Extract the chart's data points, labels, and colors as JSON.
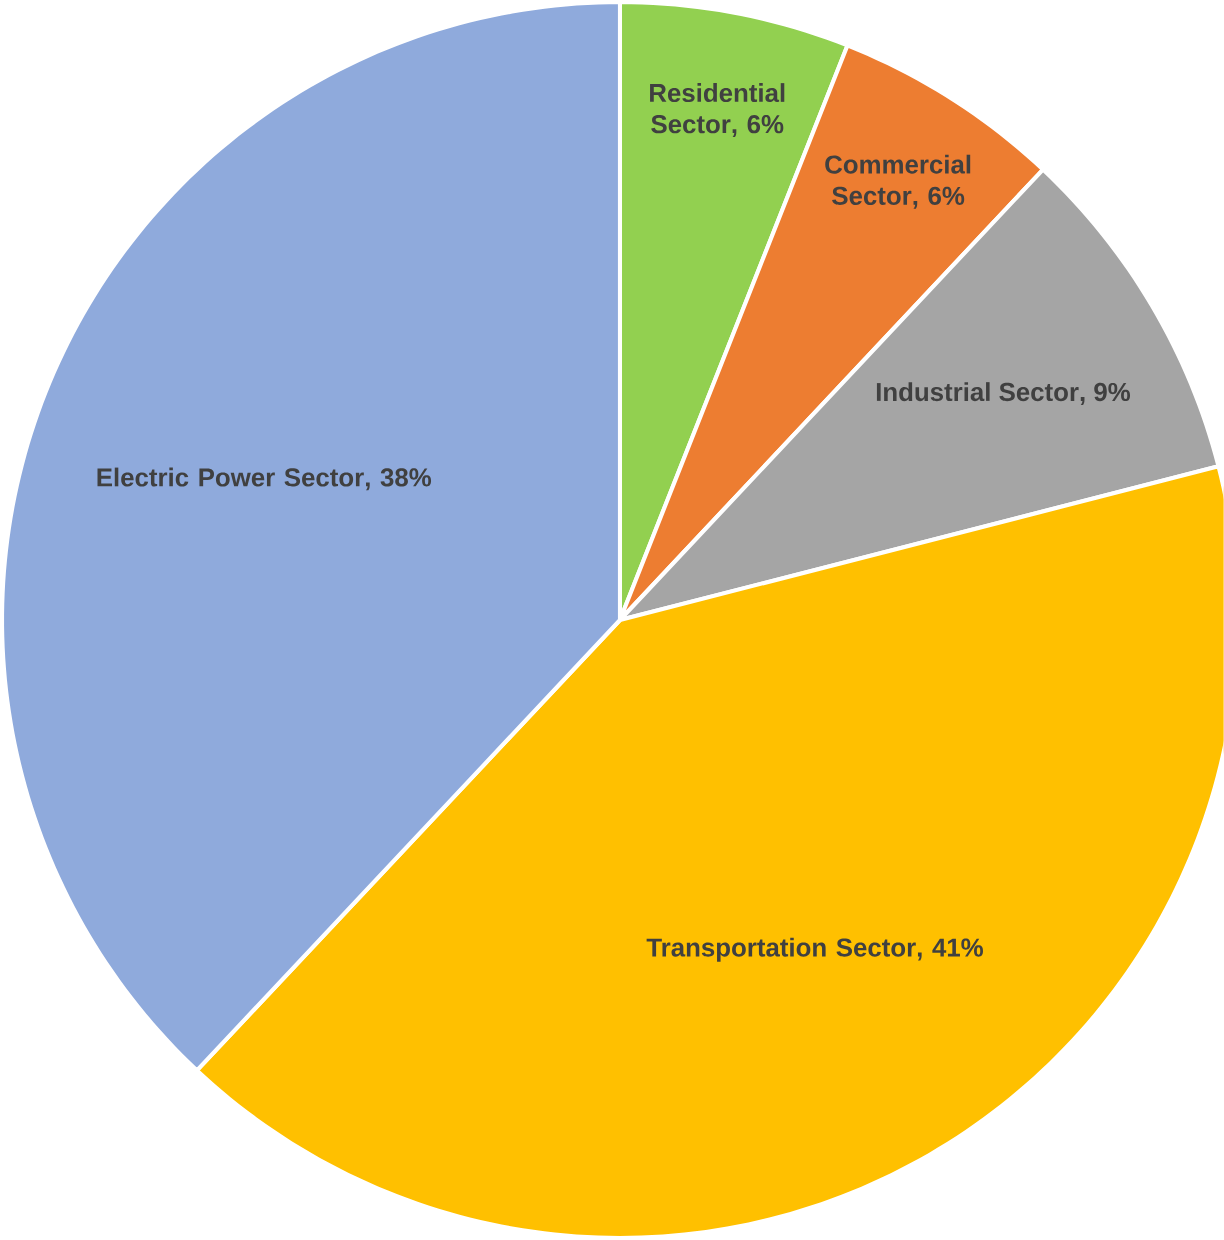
{
  "chart_data": {
    "type": "pie",
    "categories": [
      "Residential Sector",
      "Commercial Sector",
      "Industrial Sector",
      "Transportation Sector",
      "Electric Power Sector"
    ],
    "values": [
      6,
      6,
      9,
      41,
      38
    ],
    "value_labels": [
      ", 6%",
      ", 6%",
      ", 9%",
      ", 41%",
      ", 38%"
    ],
    "colors": [
      "#92d050",
      "#ed7d31",
      "#a5a5a5",
      "#ffc000",
      "#8faadc"
    ]
  }
}
